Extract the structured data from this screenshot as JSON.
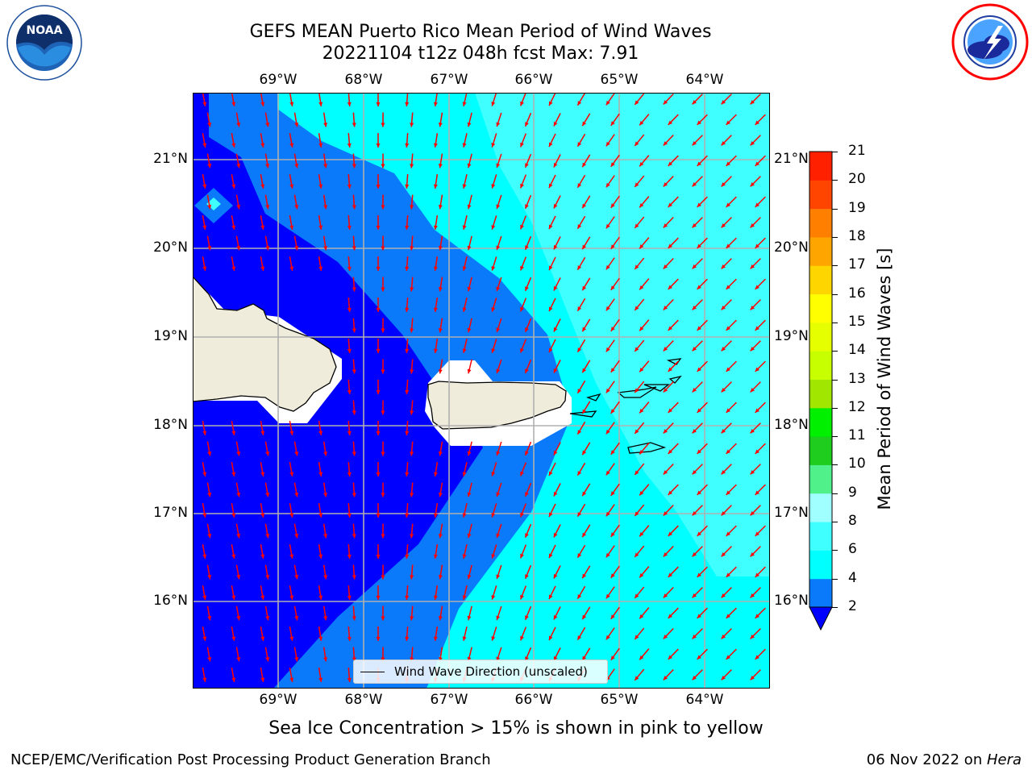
{
  "title": {
    "line1": "GEFS MEAN Puerto Rico Mean Period of Wind Waves",
    "line2": "20221104 t12z 048h fcst   Max: 7.91"
  },
  "logos": {
    "left": {
      "name": "NOAA",
      "text": "NOAA",
      "ring_text": "NATIONAL OCEANIC AND ATMOSPHERIC ADMINISTRATION · U.S. DEPARTMENT OF COMMERCE"
    },
    "right": {
      "name": "National Weather Service",
      "ring_text": "NATIONAL WEATHER SERVICE"
    }
  },
  "map": {
    "longitude_labels": [
      "69°W",
      "68°W",
      "67°W",
      "66°W",
      "65°W",
      "64°W"
    ],
    "latitude_labels": [
      "21°N",
      "20°N",
      "19°N",
      "18°N",
      "17°N",
      "16°N"
    ],
    "extent": {
      "lon_min": -70.0,
      "lon_max": -63.25,
      "lat_min": 15.0,
      "lat_max": 21.75
    },
    "gridlines": true,
    "land_color": "#efecdc",
    "vector_color": "#ff0000",
    "legend_label": "Wind Wave Direction (unscaled)"
  },
  "colorbar": {
    "title": "Mean Period of Wind Waves [s]",
    "ticks": [
      "2",
      "4",
      "6",
      "8",
      "9",
      "10",
      "11",
      "12",
      "13",
      "14",
      "15",
      "16",
      "17",
      "18",
      "19",
      "20",
      "21"
    ],
    "colors": [
      "#0000ff",
      "#0a7afa",
      "#00ffff",
      "#40ffff",
      "#a0ffff",
      "#50f08a",
      "#1ecd1e",
      "#00f000",
      "#a0e600",
      "#c8ff00",
      "#e6ff00",
      "#ffff00",
      "#ffd500",
      "#ffa500",
      "#ff7f00",
      "#ff4500",
      "#ff2000",
      "#ff0000"
    ],
    "extend_min_color": "#0000ff"
  },
  "subtitle": "Sea Ice Concentration > 15% is shown in pink to yellow",
  "footer": {
    "left": "NCEP/EMC/Verification Post Processing Product Generation Branch",
    "right_date": "06 Nov 2022 on ",
    "right_host": "Hera"
  }
}
